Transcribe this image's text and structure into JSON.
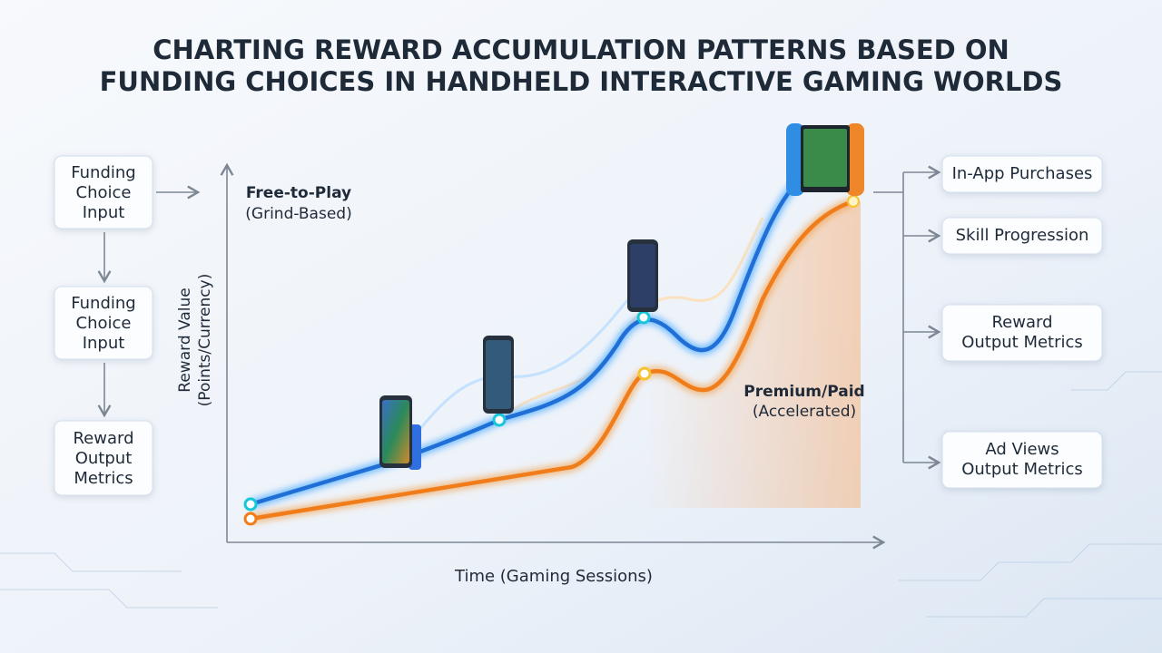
{
  "header": {
    "title_lines": [
      "CHARTING REWARD ACCUMULATION PATTERNS BASED ON",
      "FUNDING CHOICES IN HANDHELD INTERACTIVE GAMING WORLDS"
    ]
  },
  "left_flow": {
    "nodes": [
      {
        "lines": [
          "Funding",
          "Choice",
          "Input"
        ]
      },
      {
        "lines": [
          "Funding",
          "Choice",
          "Input"
        ]
      },
      {
        "lines": [
          "Reward",
          "Output",
          "Metrics"
        ]
      }
    ]
  },
  "chart": {
    "y_axis_label": [
      "Reward Value",
      "(Points/Currency)"
    ],
    "x_axis_label": "Time (Gaming Sessions)",
    "curves": [
      {
        "name": "Free-to-Play",
        "note": "(Grind-Based)"
      },
      {
        "name": "Premium/Paid",
        "note": "(Accelerated)"
      }
    ]
  },
  "right_flow": {
    "nodes": [
      {
        "lines": [
          "In-App Purchases"
        ]
      },
      {
        "lines": [
          "Skill Progression"
        ]
      },
      {
        "lines": [
          "Reward",
          "Output Metrics"
        ]
      },
      {
        "lines": [
          "Ad Views",
          "Output Metrics"
        ]
      }
    ]
  }
}
